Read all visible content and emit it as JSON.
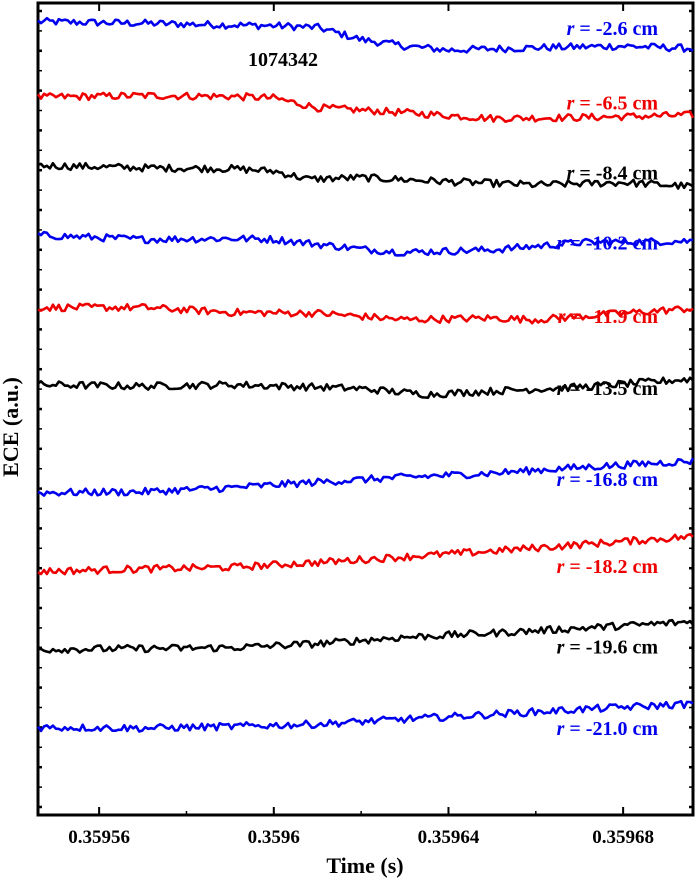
{
  "chart_data": {
    "type": "line",
    "xlabel": "Time (s)",
    "ylabel": "ECE (a.u.)",
    "annotation": "1074342",
    "xlim": [
      0.359546,
      0.359696
    ],
    "x_ticks": [
      "0.35956",
      "0.3596",
      "0.35964",
      "0.35968"
    ],
    "x_tick_values": [
      0.35956,
      0.3596,
      0.35964,
      0.35968
    ],
    "y_ticks_labeled": false,
    "series": [
      {
        "r_label": "r",
        "value_label": " = -2.6 cm",
        "color": "#0000ee",
        "label_y": 0.9695,
        "points": [
          [
            0.359546,
            0.977
          ],
          [
            0.35957,
            0.975
          ],
          [
            0.3596,
            0.972
          ],
          [
            0.35961,
            0.97
          ],
          [
            0.35962,
            0.955
          ],
          [
            0.35963,
            0.947
          ],
          [
            0.35964,
            0.942
          ],
          [
            0.35966,
            0.945
          ],
          [
            0.35968,
            0.947
          ],
          [
            0.359696,
            0.944
          ]
        ]
      },
      {
        "r_label": "r",
        "value_label": " = -6.5 cm",
        "color": "#ee0000",
        "label_y": 0.8775,
        "points": [
          [
            0.359546,
            0.884
          ],
          [
            0.35957,
            0.886
          ],
          [
            0.35959,
            0.885
          ],
          [
            0.3596,
            0.883
          ],
          [
            0.35961,
            0.871
          ],
          [
            0.35963,
            0.865
          ],
          [
            0.35965,
            0.858
          ],
          [
            0.35967,
            0.859
          ],
          [
            0.359696,
            0.862
          ]
        ]
      },
      {
        "r_label": "r",
        "value_label": " = -8.4 cm",
        "color": "#000000",
        "label_y": 0.7915,
        "points": [
          [
            0.359546,
            0.8
          ],
          [
            0.35957,
            0.797
          ],
          [
            0.35959,
            0.796
          ],
          [
            0.3596,
            0.793
          ],
          [
            0.359608,
            0.783
          ],
          [
            0.35962,
            0.785
          ],
          [
            0.35964,
            0.78
          ],
          [
            0.35966,
            0.776
          ],
          [
            0.35968,
            0.779
          ],
          [
            0.359696,
            0.774
          ]
        ]
      },
      {
        "r_label": "r",
        "value_label": " = -10.2 cm",
        "color": "#0000ee",
        "label_y": 0.705,
        "points": [
          [
            0.359546,
            0.714
          ],
          [
            0.35957,
            0.709
          ],
          [
            0.35959,
            0.71
          ],
          [
            0.3596,
            0.709
          ],
          [
            0.35962,
            0.697
          ],
          [
            0.35963,
            0.693
          ],
          [
            0.35965,
            0.696
          ],
          [
            0.35967,
            0.705
          ],
          [
            0.359696,
            0.707
          ]
        ]
      },
      {
        "r_label": "r",
        "value_label": " = -11.9 cm",
        "color": "#ee0000",
        "label_y": 0.6145,
        "points": [
          [
            0.359546,
            0.625
          ],
          [
            0.35957,
            0.625
          ],
          [
            0.35959,
            0.619
          ],
          [
            0.35961,
            0.618
          ],
          [
            0.35963,
            0.61
          ],
          [
            0.35965,
            0.612
          ],
          [
            0.35966,
            0.61
          ],
          [
            0.35968,
            0.618
          ],
          [
            0.359696,
            0.624
          ]
        ]
      },
      {
        "r_label": "r",
        "value_label": " = -13.5 cm",
        "color": "#000000",
        "label_y": 0.526,
        "points": [
          [
            0.359546,
            0.53
          ],
          [
            0.35957,
            0.528
          ],
          [
            0.35959,
            0.53
          ],
          [
            0.35961,
            0.527
          ],
          [
            0.35962,
            0.525
          ],
          [
            0.359635,
            0.518
          ],
          [
            0.35965,
            0.522
          ],
          [
            0.35967,
            0.527
          ],
          [
            0.359696,
            0.537
          ]
        ]
      },
      {
        "r_label": "r",
        "value_label": " = -16.8 cm",
        "color": "#0000ee",
        "label_y": 0.4135,
        "points": [
          [
            0.359546,
            0.397
          ],
          [
            0.35957,
            0.398
          ],
          [
            0.35959,
            0.403
          ],
          [
            0.35961,
            0.41
          ],
          [
            0.35963,
            0.416
          ],
          [
            0.35965,
            0.421
          ],
          [
            0.35967,
            0.428
          ],
          [
            0.359696,
            0.436
          ]
        ]
      },
      {
        "r_label": "r",
        "value_label": " = -18.2 cm",
        "color": "#ee0000",
        "label_y": 0.3065,
        "points": [
          [
            0.359546,
            0.3
          ],
          [
            0.35957,
            0.303
          ],
          [
            0.35959,
            0.305
          ],
          [
            0.35961,
            0.311
          ],
          [
            0.35963,
            0.318
          ],
          [
            0.35965,
            0.325
          ],
          [
            0.35967,
            0.333
          ],
          [
            0.359696,
            0.343
          ]
        ]
      },
      {
        "r_label": "r",
        "value_label": " = -19.6 cm",
        "color": "#000000",
        "label_y": 0.2075,
        "points": [
          [
            0.359546,
            0.204
          ],
          [
            0.35957,
            0.205
          ],
          [
            0.35959,
            0.206
          ],
          [
            0.35961,
            0.211
          ],
          [
            0.35963,
            0.219
          ],
          [
            0.35965,
            0.224
          ],
          [
            0.35967,
            0.23
          ],
          [
            0.359696,
            0.238
          ]
        ]
      },
      {
        "r_label": "r",
        "value_label": " = -21.0 cm",
        "color": "#0000ee",
        "label_y": 0.107,
        "points": [
          [
            0.359546,
            0.108
          ],
          [
            0.35957,
            0.107
          ],
          [
            0.35959,
            0.109
          ],
          [
            0.35961,
            0.112
          ],
          [
            0.35963,
            0.118
          ],
          [
            0.35965,
            0.124
          ],
          [
            0.35967,
            0.13
          ],
          [
            0.359696,
            0.137
          ]
        ]
      }
    ]
  }
}
